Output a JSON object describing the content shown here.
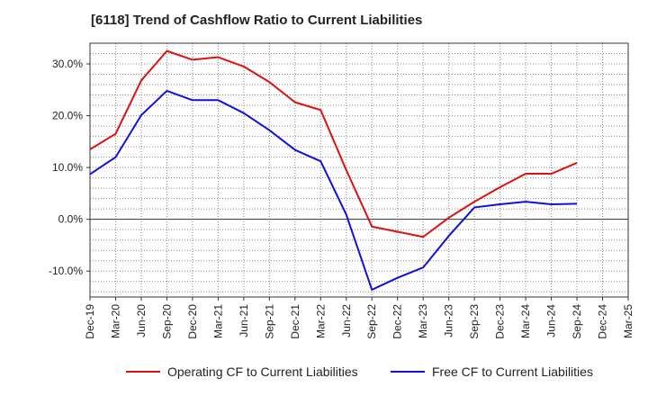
{
  "title": "[6118]  Trend of Cashflow Ratio to Current Liabilities",
  "chart_data": {
    "type": "line",
    "title": "[6118]  Trend of Cashflow Ratio to Current Liabilities",
    "xlabel": "",
    "ylabel": "",
    "categories": [
      "Dec-19",
      "Mar-20",
      "Jun-20",
      "Sep-20",
      "Dec-20",
      "Mar-21",
      "Jun-21",
      "Sep-21",
      "Dec-21",
      "Mar-22",
      "Jun-22",
      "Sep-22",
      "Dec-22",
      "Mar-23",
      "Jun-23",
      "Sep-23",
      "Dec-23",
      "Mar-24",
      "Jun-24",
      "Sep-24",
      "Dec-24",
      "Mar-25"
    ],
    "yticks": [
      "30.0%",
      "20.0%",
      "10.0%",
      "0.0%",
      "-10.0%"
    ],
    "ytick_values": [
      30,
      20,
      10,
      0,
      -10
    ],
    "ylim": [
      -15,
      34
    ],
    "grid": true,
    "legend_position": "bottom",
    "series": [
      {
        "name": "Operating CF to Current Liabilities",
        "color": "#dd1111",
        "values": [
          13.5,
          16.5,
          26.8,
          32.5,
          30.8,
          31.3,
          29.5,
          26.5,
          22.6,
          21.1,
          9.5,
          -1.4,
          -2.4,
          -3.4,
          0.3,
          3.4,
          6.2,
          8.8,
          8.8,
          10.9,
          null,
          null
        ]
      },
      {
        "name": "Free CF to Current Liabilities",
        "color": "#1111dd",
        "values": [
          8.7,
          12.0,
          20.1,
          24.8,
          23.0,
          23.0,
          20.5,
          17.2,
          13.4,
          11.2,
          0.9,
          -13.6,
          -11.3,
          -9.3,
          -3.2,
          2.3,
          2.9,
          3.4,
          2.9,
          3.0,
          null,
          null
        ]
      }
    ]
  }
}
